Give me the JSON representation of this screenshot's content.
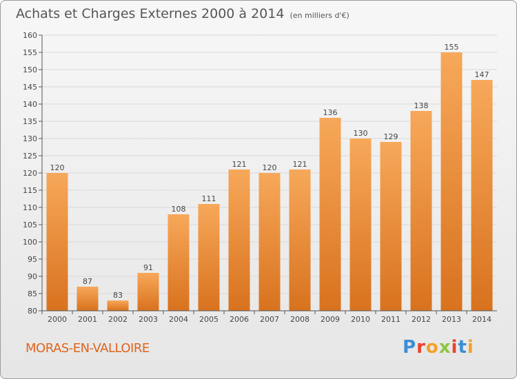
{
  "title": "Achats et Charges Externes 2000 à 2014",
  "subtitle": "(en milliers d'€)",
  "commune": "MORAS-EN-VALLOIRE",
  "logo": {
    "text": "Proxiti",
    "colors": [
      "#3a8fd6",
      "#e8442c",
      "#f2a12c",
      "#8cc63f",
      "#e8442c",
      "#3a8fd6",
      "#f2a12c"
    ]
  },
  "colors": {
    "bar_top": "#f7a85a",
    "bar_bottom": "#d8721e",
    "commune": "#e0641e",
    "grid": "#d9d9d9"
  },
  "chart_data": {
    "type": "bar",
    "categories": [
      "2000",
      "2001",
      "2002",
      "2003",
      "2004",
      "2005",
      "2006",
      "2007",
      "2008",
      "2009",
      "2010",
      "2011",
      "2012",
      "2013",
      "2014"
    ],
    "values": [
      120,
      87,
      83,
      91,
      108,
      111,
      121,
      120,
      121,
      136,
      130,
      129,
      138,
      155,
      147
    ],
    "title": "Achats et Charges Externes 2000 à 2014",
    "xlabel": "",
    "ylabel": "",
    "ylim": [
      80,
      160
    ],
    "yticks": [
      80,
      85,
      90,
      95,
      100,
      105,
      110,
      115,
      120,
      125,
      130,
      135,
      140,
      145,
      150,
      155,
      160
    ],
    "grid": true
  }
}
